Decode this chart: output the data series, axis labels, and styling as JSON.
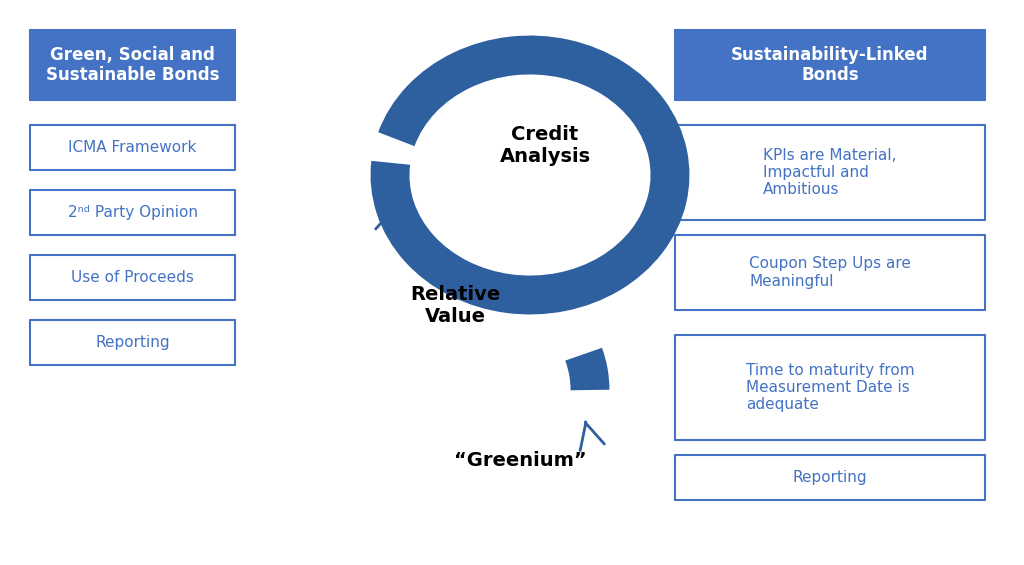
{
  "bg_color": "#ffffff",
  "dark_blue": "#2E5F9E",
  "mid_blue": "#4472C4",
  "light_blue_fill": "#4472C4",
  "box_border": "#4472C4",
  "box_text_color": "#4472C4",
  "header_bg": "#4472C4",
  "header_text": "#ffffff",
  "arrow_color": "#2E5F9E",
  "center_text_color": "#000000",
  "left_header": "Green, Social and\nSustainable Bonds",
  "left_items": [
    "ICMA Framework",
    "2ⁿᵈ Party Opinion",
    "Use of Proceeds",
    "Reporting"
  ],
  "right_header": "Sustainability-Linked\nBonds",
  "right_items": [
    "KPIs are Material,\nImpactful and\nAmbitious",
    "Coupon Step Ups are\nMeaningful",
    "Time to maturity from\nMeasurement Date is\nadequate",
    "Reporting"
  ],
  "center_labels": [
    "Credit\nAnalysis",
    "Relative\nValue",
    "“Greenium”"
  ]
}
